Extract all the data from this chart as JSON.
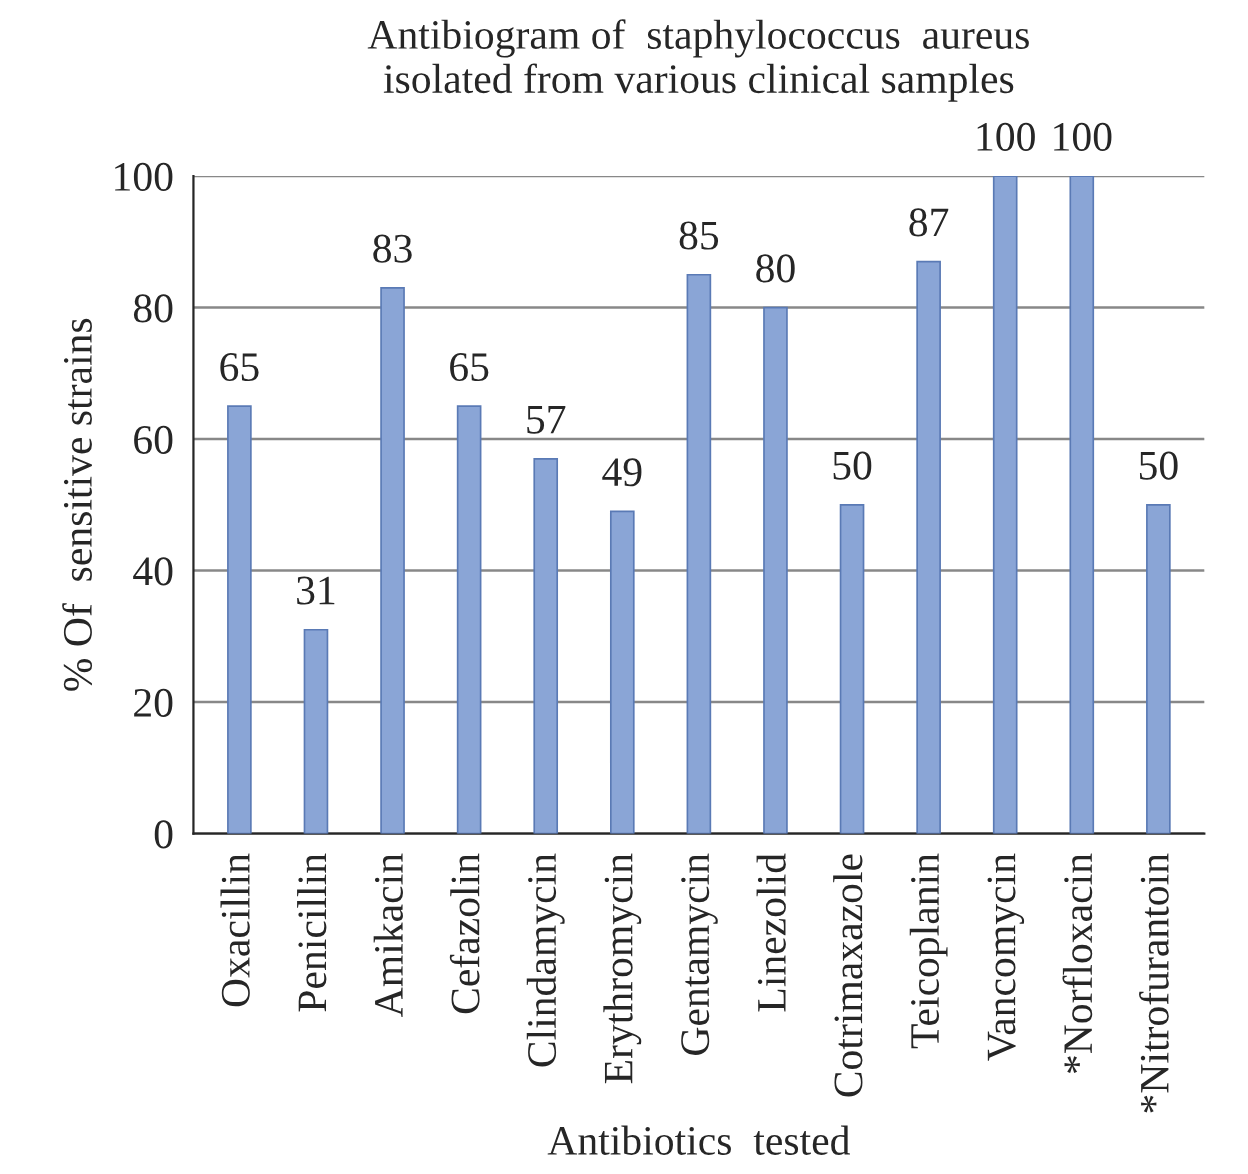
{
  "chart_data": {
    "type": "bar",
    "title": "Antibiogram of  staphylococcus  aureus\nisolated from various clinical samples",
    "xlabel": "Antibiotics  tested",
    "ylabel": "% Of  sensitive strains",
    "categories": [
      "Oxacillin",
      "Penicillin",
      "Amikacin",
      "Cefazolin",
      "Clindamycin",
      "Erythromycin",
      "Gentamycin",
      "Linezolid",
      "Cotrimaxazole",
      "Teicoplanin",
      "Vancomycin",
      "*Norfloxacin",
      "*Nitrofurantoin"
    ],
    "values": [
      65,
      31,
      83,
      65,
      57,
      49,
      85,
      80,
      50,
      87,
      100,
      100,
      50
    ],
    "color": "#8aa5d6",
    "ylim": [
      0,
      100
    ],
    "yticks": [
      0,
      20,
      40,
      60,
      80,
      100
    ],
    "grid": "y",
    "data_labels": true
  }
}
